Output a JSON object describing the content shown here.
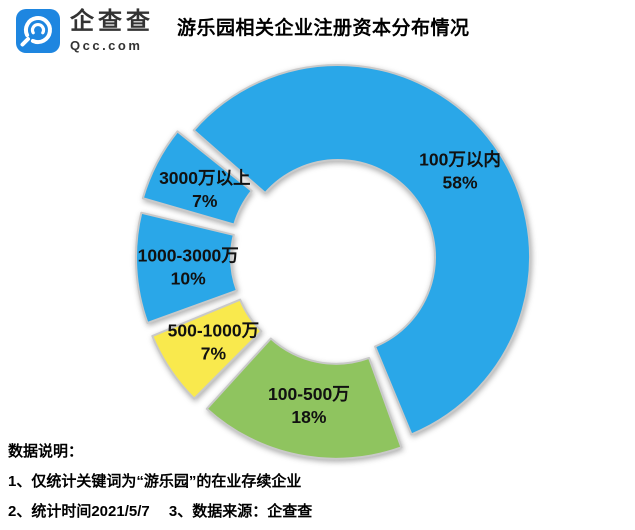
{
  "header": {
    "logo": {
      "brand": "企查查",
      "domain": "Qcc.com",
      "brand_color": "#1E86E0"
    },
    "title": "游乐园相关企业注册资本分布情况"
  },
  "chart_data": {
    "type": "pie",
    "subtype": "donut",
    "title": "游乐园相关企业注册资本分布情况",
    "unit": "%",
    "slices": [
      {
        "label": "100万以内",
        "value": 58,
        "color": "#2AA7E8",
        "explode": 0
      },
      {
        "label": "100-500万",
        "value": 18,
        "color": "#8FC45F",
        "explode": 10
      },
      {
        "label": "500-1000万",
        "value": 7,
        "color": "#F9E94D",
        "explode": 10
      },
      {
        "label": "1000-3000万",
        "value": 10,
        "color": "#2AA7E8",
        "explode": 10
      },
      {
        "label": "3000万以上",
        "value": 7,
        "color": "#2AA7E8",
        "explode": 12
      }
    ],
    "start_angle_deg": -50,
    "direction": "clockwise",
    "inner_radius_ratio": 0.505,
    "gap_deg": 2.6,
    "label_radius": 150,
    "labels_on_slices": true,
    "legend": "none",
    "edge_color": "#c9c9c9",
    "label_color": "#111111"
  },
  "footnotes": {
    "heading": "数据说明：",
    "lines": [
      "1、仅统计关键词为“游乐园”的在业存续企业",
      "2、统计时间2021/5/7　 3、数据来源：企查查"
    ]
  }
}
